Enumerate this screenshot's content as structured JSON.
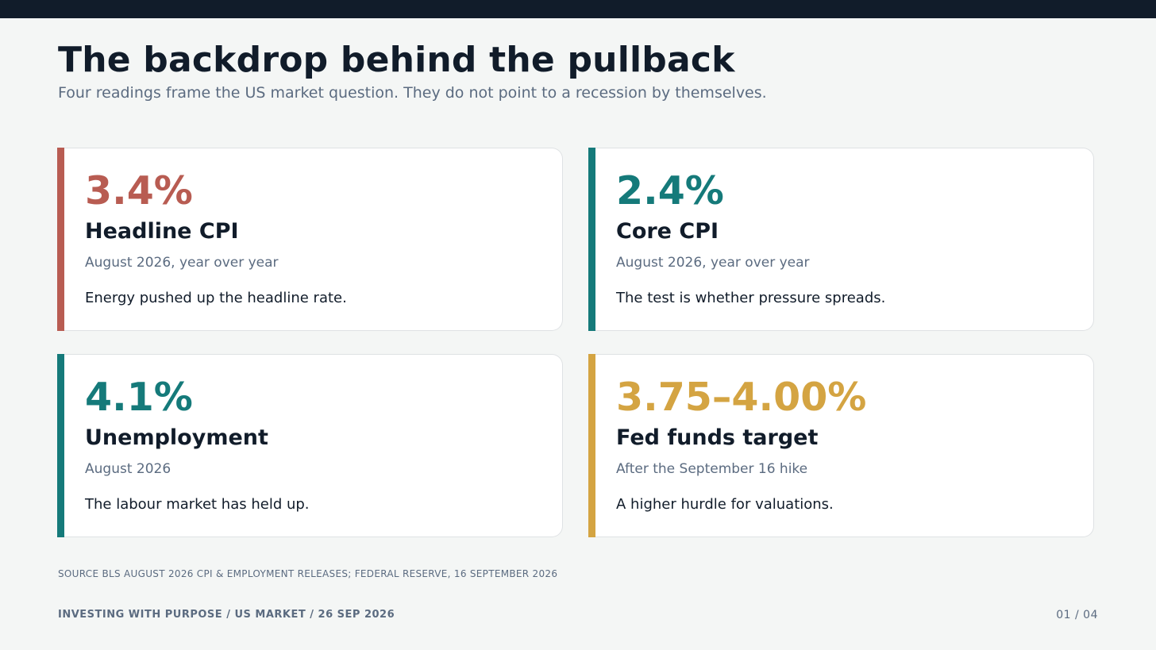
{
  "header": {
    "title": "The backdrop behind the pullback",
    "subtitle": "Four readings frame the US market question. They do not point to a recession by themselves."
  },
  "cards": [
    {
      "value": "3.4%",
      "label": "Headline CPI",
      "period": "August 2026, year over year",
      "note": "Energy pushed up the headline rate.",
      "accent_color": "#b85c52"
    },
    {
      "value": "2.4%",
      "label": "Core CPI",
      "period": "August 2026, year over year",
      "note": "The test is whether pressure spreads.",
      "accent_color": "#157a7a"
    },
    {
      "value": "4.1%",
      "label": "Unemployment",
      "period": "August 2026",
      "note": "The labour market has held up.",
      "accent_color": "#157a7a"
    },
    {
      "value": "3.75–4.00%",
      "label": "Fed funds target",
      "period": "After the September 16 hike",
      "note": "A higher hurdle for valuations.",
      "accent_color": "#d4a442"
    }
  ],
  "source": "SOURCE  BLS AUGUST 2026 CPI & EMPLOYMENT RELEASES; FEDERAL RESERVE, 16 SEPTEMBER 2026",
  "footer": {
    "left": "INVESTING WITH PURPOSE  /  US MARKET  /  26 SEP 2026",
    "page": "01 / 04"
  }
}
